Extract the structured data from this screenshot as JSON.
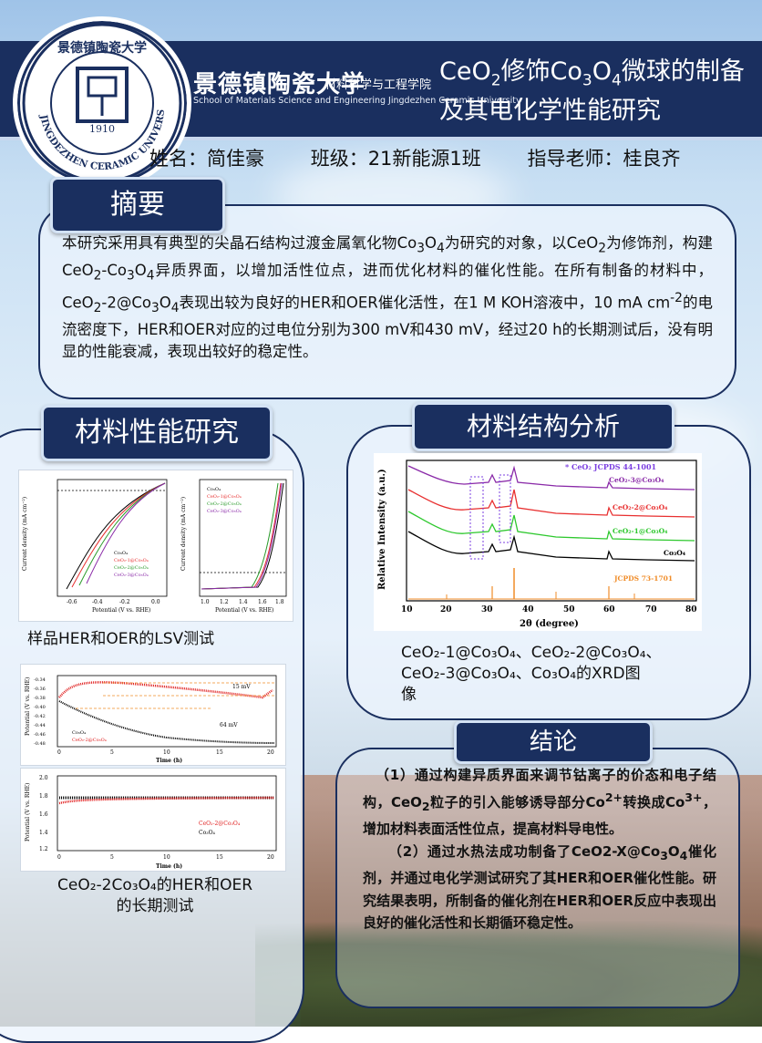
{
  "header": {
    "university_cn": "景德镇陶瓷大学",
    "school_cn": "材料科学与工程学院",
    "school_en": "School of Materials Science and Engineering Jingdezhen Ceramic University",
    "logo_ring_text": "JINGDEZHEN CERAMIC UNIVERSITY",
    "logo_year": "1910",
    "title_parts": [
      "CeO",
      "2",
      "修饰Co",
      "3",
      "O",
      "4",
      "微球的制备及其电化学性能研究"
    ]
  },
  "authors": "姓名：简佳豪    班级：21新能源1班    指导老师：桂良齐",
  "sections": {
    "abstract_label": "摘要",
    "performance_label": "材料性能研究",
    "structure_label": "材料结构分析",
    "conclusion_label": "结论"
  },
  "abstract": {
    "p1": "本研究采用具有典型的尖晶石结构过渡金属氧化物Co",
    "p2": "3",
    "p3": "O",
    "p4": "4",
    "p5": "为研究的对象，以CeO",
    "p6": "2",
    "p7": "为修饰剂，构建CeO",
    "p8": "2",
    "p9": "-Co",
    "p10": "3",
    "p11": "O",
    "p12": "4",
    "p13": "异质界面，以增加活性位点，进而优化材料的催化性能。在所有制备的材料中，CeO",
    "p14": "2",
    "p15": "-2@Co",
    "p16": "3",
    "p17": "O",
    "p18": "4",
    "p19": "表现出较为良好的HER和OER催化活性，在1 M KOH溶液中，10 mA cm",
    "p20": "-2",
    "p21": "的电流密度下，HER和OER对应的过电位分别为300 mV和430 mV，经过20 h的长期测试后，没有明显的性能衰减，表现出较好的稳定性。"
  },
  "captions": {
    "lsv": "样品HER和OER的LSV测试",
    "xrd_lines": [
      "CeO₂-1@Co₃O₄、CeO₂-2@Co₃O₄、",
      "CeO₂-3@Co₃O₄、Co₃O₄的XRD图",
      "像"
    ],
    "stability_lines": [
      "CeO₂-2Co₃O₄的HER和OER",
      "的长期测试"
    ]
  },
  "figures": {
    "her_lsv": {
      "xlabel": "Potential (V vs. RHE)",
      "ylabel": "Current density (mA cm⁻²)",
      "xticks": [
        "-0.6",
        "-0.4",
        "-0.2",
        "0.0"
      ],
      "legend": [
        "Co₃O₄",
        "CeO₂-1@Co₃O₄",
        "CeO₂-2@Co₃O₄",
        "CeO₂-3@Co₃O₄"
      ],
      "colors": [
        "#000000",
        "#e83030",
        "#2a9a2a",
        "#8a2aa8"
      ]
    },
    "oer_lsv": {
      "xlabel": "Potential (V vs. RHE)",
      "ylabel": "Current density (mA cm⁻²)",
      "xticks": [
        "1.0",
        "1.2",
        "1.4",
        "1.6",
        "1.8"
      ],
      "legend": [
        "Co₃O₄",
        "CeO₂-1@Co₃O₄",
        "CeO₂-2@Co₃O₄",
        "CeO₂-3@Co₃O₄"
      ]
    },
    "xrd": {
      "ylabel": "Relative Intensity (a.u.)",
      "xlabel": "2θ (degree)",
      "xticks": [
        "10",
        "20",
        "30",
        "40",
        "50",
        "60",
        "70",
        "80"
      ],
      "legend_top": "* CeO₂ JCPDS 44-1001",
      "series_labels": [
        "CeO₂-3@Co₃O₄",
        "CeO₂-2@Co₃O₄",
        "CeO₂-1@Co₃O₄",
        "Co₃O₄",
        "JCPDS 73-1701"
      ],
      "colors": [
        "#8a2aa8",
        "#e83030",
        "#2ec82e",
        "#000000",
        "#f08c28"
      ]
    },
    "her_stability": {
      "ylabel": "Potential (V vs. RHE)",
      "xlabel": "Time (h)",
      "yticks": [
        "-0.34",
        "-0.36",
        "-0.38",
        "-0.40",
        "-0.42",
        "-0.44",
        "-0.46",
        "-0.48"
      ],
      "xticks": [
        "0",
        "5",
        "10",
        "15",
        "20"
      ],
      "annot1": "15 mV",
      "annot2": "64 mV",
      "legend": [
        "Co₃O₄",
        "CeO₂-2@Co₃O₄"
      ]
    },
    "oer_stability": {
      "ylabel": "Potential (V vs. RHE)",
      "xlabel": "Time (h)",
      "yticks": [
        "2.0",
        "1.8",
        "1.6",
        "1.4",
        "1.2"
      ],
      "xticks": [
        "0",
        "5",
        "10",
        "15",
        "20"
      ],
      "legend": [
        "CeO₂-2@Co₃O₄",
        "Co₃O₄"
      ]
    }
  },
  "conclusion": {
    "c1": "（1）通过构建异质界面来调节钴离子的价态和电子结构，CeO",
    "c2": "2",
    "c3": "粒子的引入能够诱导部分Co",
    "c4": "2+",
    "c5": "转换成Co",
    "c6": "3+",
    "c7": "，增加材料表面活性位点，提高材料导电性。",
    "c8": "（2）通过水热法成功制备了CeO2-X@Co",
    "c9": "3",
    "c10": "O",
    "c11": "4",
    "c12": "催化剂，并通过电化学测试研究了其HER和OER催化性能。研究结果表明，所制备的催化剂在HER和OER反应中表现出良好的催化活性和长期循环稳定性。"
  }
}
